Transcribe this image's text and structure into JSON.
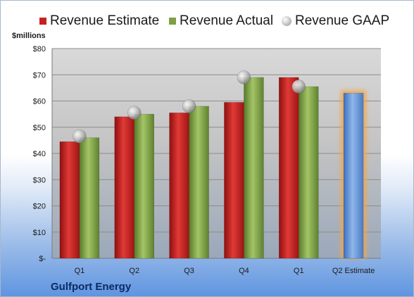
{
  "chart_data": {
    "type": "bar",
    "categories": [
      "Q1",
      "Q2",
      "Q3",
      "Q4",
      "Q1",
      "Q2 Estimate"
    ],
    "series": [
      {
        "name": "Revenue Estimate",
        "type": "bar",
        "color": "#c8201f",
        "values": [
          44.5,
          54.0,
          55.5,
          59.5,
          69.0,
          null
        ]
      },
      {
        "name": "Revenue Actual",
        "type": "bar",
        "color": "#7ea043",
        "values": [
          46.0,
          55.0,
          58.0,
          69.0,
          65.5,
          null
        ]
      },
      {
        "name": "Revenue GAAP",
        "type": "scatter",
        "color": "#c0c0c0",
        "values": [
          46.5,
          55.5,
          58.0,
          69.0,
          65.5,
          null
        ]
      },
      {
        "name": "",
        "type": "bar",
        "color": "#5b8fd6",
        "highlight": "#f4a64a",
        "values": [
          null,
          null,
          null,
          null,
          null,
          63.0
        ]
      }
    ],
    "ylabel": "$millions",
    "ylim": [
      0,
      80
    ],
    "yticks": [
      "$-",
      "$10",
      "$20",
      "$30",
      "$40",
      "$50",
      "$60",
      "$70",
      "$80"
    ],
    "grid": true,
    "legend": "top"
  },
  "footer": {
    "company": "Gulfport Energy"
  }
}
